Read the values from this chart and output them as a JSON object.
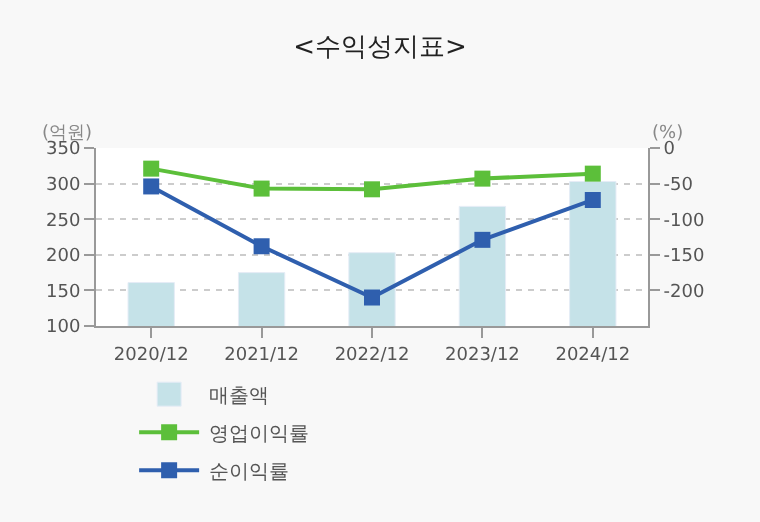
{
  "chart_data": {
    "type": "bar",
    "title": "<수익성지표>",
    "ylabel": "(억원)",
    "y2label": "(%)",
    "categories": [
      "2020/12",
      "2021/12",
      "2022/12",
      "2023/12",
      "2024/12"
    ],
    "series": [
      {
        "name": "매출액",
        "color": "#c5e2e8",
        "values": [
          161,
          175,
          203,
          268,
          303
        ]
      },
      {
        "name": "영업이익률",
        "type": "line",
        "axis": "y2",
        "color": "#5cbf3a",
        "values": [
          -29,
          -57,
          -58,
          -43,
          -36
        ]
      },
      {
        "name": "순이익률",
        "type": "line",
        "axis": "y2",
        "color": "#2f5fae",
        "values": [
          -54,
          -138,
          -210,
          -129,
          -73
        ]
      }
    ],
    "ylim": [
      100,
      350
    ],
    "yticks": [
      100,
      150,
      200,
      250,
      300,
      350
    ],
    "y2lim": [
      -250,
      0
    ],
    "y2ticks": [
      -200,
      -150,
      -100,
      -50,
      0
    ],
    "grid": "y",
    "legend": "bottom",
    "marker": "square",
    "line_style": "solid"
  }
}
